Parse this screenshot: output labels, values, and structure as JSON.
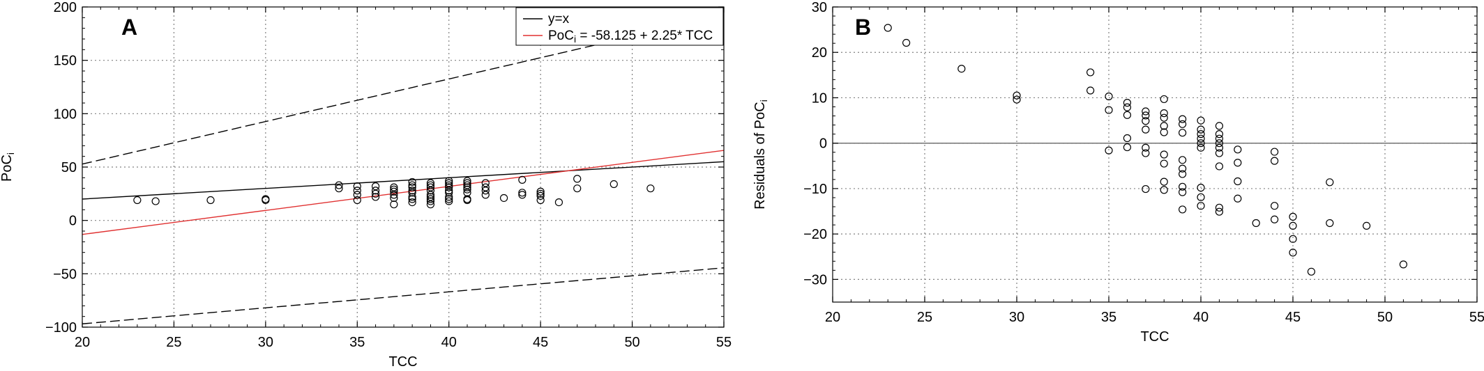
{
  "colors": {
    "fit_line": "#e03030",
    "identity_line": "#000000",
    "points": "#000000",
    "grid": "#808080"
  },
  "chart_data": [
    {
      "panel_label": "A",
      "type": "scatter",
      "xlabel": "TCC",
      "ylabel_main": "PoC",
      "ylabel_sub": "i",
      "xlim": [
        20,
        55
      ],
      "ylim": [
        -100,
        200
      ],
      "xticks": [
        20,
        25,
        30,
        35,
        40,
        45,
        50,
        55
      ],
      "yticks": [
        -100,
        -50,
        0,
        50,
        100,
        150,
        200
      ],
      "grid": true,
      "legend_position": "top-right",
      "legend": [
        {
          "label": "y=x",
          "style": "solid",
          "color": "#000000"
        },
        {
          "label_pre": "PoC",
          "label_sub": "i",
          "label_post": " = -58.125 + 2.25* TCC",
          "style": "solid",
          "color": "#e03030"
        }
      ],
      "lines": [
        {
          "name": "y=x",
          "style": "solid",
          "color": "#000000",
          "x": [
            20,
            55
          ],
          "y": [
            20,
            55
          ]
        },
        {
          "name": "PoC_i = -58.125 + 2.25* TCC",
          "style": "solid",
          "color": "#e03030",
          "x": [
            20,
            55
          ],
          "y": [
            -13.125,
            65.625
          ]
        },
        {
          "style": "dashed",
          "color": "#000000",
          "x": [
            20,
            55
          ],
          "y": [
            52.8,
            192.3
          ]
        },
        {
          "style": "dashed",
          "color": "#000000",
          "x": [
            20,
            55
          ],
          "y": [
            -96.9,
            -44.4
          ]
        }
      ],
      "points": [
        [
          23,
          19
        ],
        [
          24,
          18
        ],
        [
          27,
          19
        ],
        [
          30,
          20
        ],
        [
          30,
          19
        ],
        [
          34,
          33
        ],
        [
          34,
          30
        ],
        [
          35,
          32
        ],
        [
          35,
          28
        ],
        [
          35,
          24
        ],
        [
          35,
          19
        ],
        [
          36,
          32
        ],
        [
          36,
          28
        ],
        [
          36,
          25
        ],
        [
          36,
          22
        ],
        [
          37,
          31
        ],
        [
          37,
          29
        ],
        [
          37,
          27
        ],
        [
          37,
          24
        ],
        [
          37,
          21
        ],
        [
          37,
          15
        ],
        [
          38,
          36
        ],
        [
          38,
          33
        ],
        [
          38,
          31
        ],
        [
          38,
          28
        ],
        [
          38,
          26
        ],
        [
          38,
          22
        ],
        [
          38,
          20
        ],
        [
          38,
          17
        ],
        [
          39,
          35
        ],
        [
          39,
          33
        ],
        [
          39,
          31
        ],
        [
          39,
          28
        ],
        [
          39,
          24
        ],
        [
          39,
          22
        ],
        [
          39,
          20
        ],
        [
          39,
          18
        ],
        [
          39,
          15
        ],
        [
          40,
          37
        ],
        [
          40,
          35
        ],
        [
          40,
          33
        ],
        [
          40,
          31
        ],
        [
          40,
          28
        ],
        [
          40,
          26
        ],
        [
          40,
          22
        ],
        [
          40,
          20
        ],
        [
          40,
          18
        ],
        [
          41,
          37
        ],
        [
          41,
          35
        ],
        [
          41,
          33
        ],
        [
          41,
          31
        ],
        [
          41,
          29
        ],
        [
          41,
          26
        ],
        [
          41,
          20
        ],
        [
          41,
          19
        ],
        [
          42,
          35
        ],
        [
          42,
          31
        ],
        [
          42,
          28
        ],
        [
          42,
          24
        ],
        [
          43,
          21
        ],
        [
          44,
          38
        ],
        [
          44,
          26
        ],
        [
          44,
          24
        ],
        [
          45,
          27
        ],
        [
          45,
          25
        ],
        [
          45,
          23
        ],
        [
          45,
          19
        ],
        [
          46,
          17
        ],
        [
          47,
          39
        ],
        [
          47,
          30
        ],
        [
          49,
          34
        ],
        [
          51,
          30
        ]
      ]
    },
    {
      "panel_label": "B",
      "type": "scatter",
      "xlabel": "TCC",
      "ylabel_main": "Residuals of PoC",
      "ylabel_sub": "i",
      "xlim": [
        20,
        55
      ],
      "ylim": [
        -35,
        30
      ],
      "xticks": [
        20,
        25,
        30,
        35,
        40,
        45,
        50,
        55
      ],
      "yticks": [
        -30,
        -20,
        -10,
        0,
        10,
        20,
        30
      ],
      "grid": true,
      "reference_line": 0,
      "points": [
        [
          23,
          25.4
        ],
        [
          24,
          22.1
        ],
        [
          27,
          16.4
        ],
        [
          30,
          10.5
        ],
        [
          30,
          9.6
        ],
        [
          34,
          15.6
        ],
        [
          34,
          11.6
        ],
        [
          35,
          10.3
        ],
        [
          35,
          7.3
        ],
        [
          35,
          -1.6
        ],
        [
          36,
          8.9
        ],
        [
          36,
          7.9
        ],
        [
          36,
          6.2
        ],
        [
          36,
          1.1
        ],
        [
          36,
          -0.9
        ],
        [
          37,
          7.0
        ],
        [
          37,
          6.1
        ],
        [
          37,
          4.9
        ],
        [
          37,
          3.0
        ],
        [
          37,
          -1.0
        ],
        [
          37,
          -2.2
        ],
        [
          37,
          -10.1
        ],
        [
          38,
          9.7
        ],
        [
          38,
          6.6
        ],
        [
          38,
          5.6
        ],
        [
          38,
          3.8
        ],
        [
          38,
          2.4
        ],
        [
          38,
          -2.5
        ],
        [
          38,
          -4.5
        ],
        [
          38,
          -8.5
        ],
        [
          38,
          -10.3
        ],
        [
          39,
          5.3
        ],
        [
          39,
          4.2
        ],
        [
          39,
          2.3
        ],
        [
          39,
          -3.7
        ],
        [
          39,
          -5.6
        ],
        [
          39,
          -6.8
        ],
        [
          39,
          -9.6
        ],
        [
          39,
          -10.8
        ],
        [
          39,
          -14.6
        ],
        [
          40,
          5.0
        ],
        [
          40,
          3.0
        ],
        [
          40,
          2.0
        ],
        [
          40,
          1.0
        ],
        [
          40,
          0.0
        ],
        [
          40,
          -1.0
        ],
        [
          40,
          -9.8
        ],
        [
          40,
          -11.9
        ],
        [
          40,
          -13.8
        ],
        [
          41,
          3.8
        ],
        [
          41,
          2.0
        ],
        [
          41,
          1.0
        ],
        [
          41,
          0.0
        ],
        [
          41,
          -1.0
        ],
        [
          41,
          -2.2
        ],
        [
          41,
          -5.1
        ],
        [
          41,
          -14.2
        ],
        [
          41,
          -15.1
        ],
        [
          42,
          -1.4
        ],
        [
          42,
          -4.3
        ],
        [
          42,
          -8.4
        ],
        [
          42,
          -12.2
        ],
        [
          43,
          -17.6
        ],
        [
          44,
          -1.9
        ],
        [
          44,
          -3.9
        ],
        [
          44,
          -13.8
        ],
        [
          44,
          -16.8
        ],
        [
          45,
          -16.2
        ],
        [
          45,
          -18.2
        ],
        [
          45,
          -21.1
        ],
        [
          45,
          -24.1
        ],
        [
          46,
          -28.3
        ],
        [
          47,
          -8.6
        ],
        [
          47,
          -17.6
        ],
        [
          49,
          -18.2
        ],
        [
          51,
          -26.7
        ]
      ]
    }
  ]
}
